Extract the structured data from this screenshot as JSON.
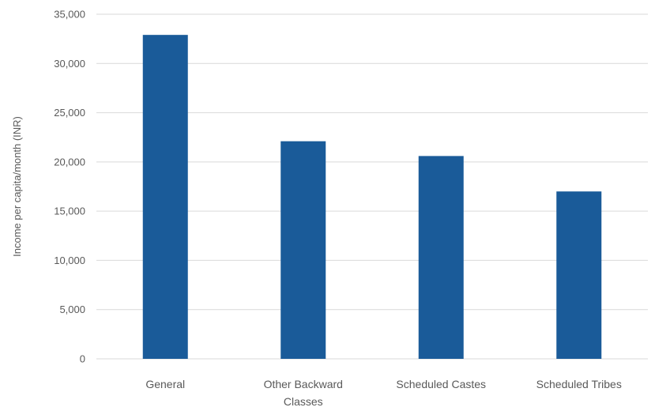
{
  "chart_data": {
    "type": "bar",
    "categories": [
      "General",
      "Other Backward Classes",
      "Scheduled Castes",
      "Scheduled Tribes"
    ],
    "category_lines": [
      [
        "General"
      ],
      [
        "Other Backward",
        "Classes"
      ],
      [
        "Scheduled Castes"
      ],
      [
        "Scheduled Tribes"
      ]
    ],
    "values": [
      32900,
      22100,
      20600,
      17000
    ],
    "ylabel": "Income per capita/month (INR)",
    "ylim": [
      0,
      35000
    ],
    "ytick_values": [
      0,
      5000,
      10000,
      15000,
      20000,
      25000,
      30000,
      35000
    ],
    "ytick_labels": [
      "0",
      "5,000",
      "10,000",
      "15,000",
      "20,000",
      "25,000",
      "30,000",
      "35,000"
    ],
    "grid": true,
    "legend": "none",
    "bar_color": "#1a5b99"
  }
}
